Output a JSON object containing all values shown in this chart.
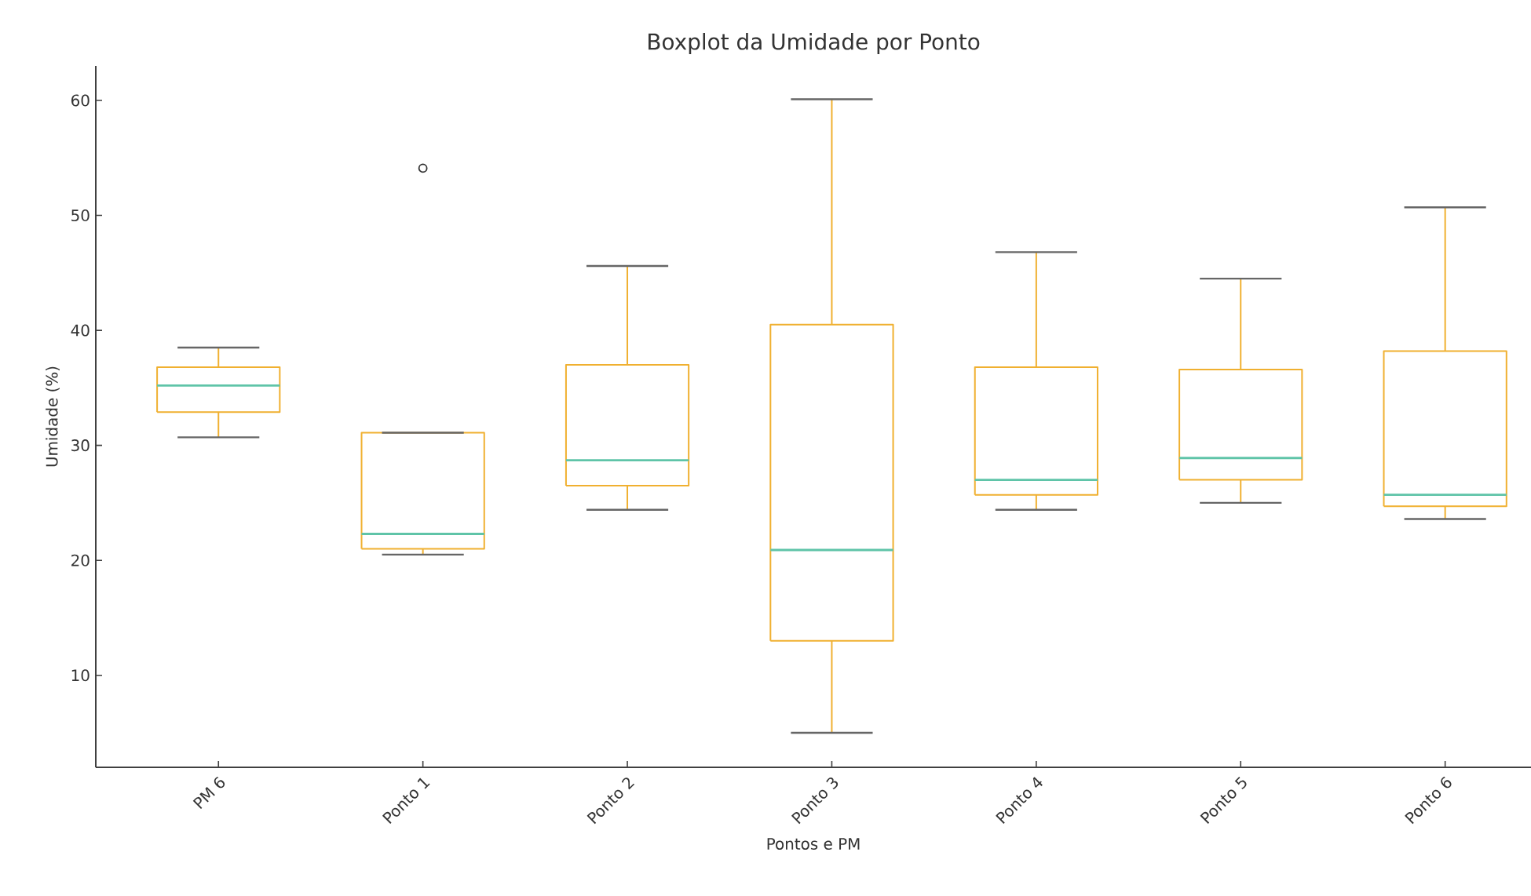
{
  "chart_data": {
    "type": "box",
    "title": "Boxplot da Umidade por Ponto",
    "xlabel": "Pontos e PM",
    "ylabel": "Umidade (%)",
    "categories": [
      "PM 6",
      "Ponto 1",
      "Ponto 2",
      "Ponto 3",
      "Ponto 4",
      "Ponto 5",
      "Ponto 6"
    ],
    "series": [
      {
        "color": "#f0b030",
        "boxes": [
          {
            "low": 30.7,
            "q1": 32.9,
            "median": 35.2,
            "q3": 36.8,
            "high": 38.5
          },
          {
            "low": 20.5,
            "q1": 21.0,
            "median": 22.3,
            "q3": 31.1,
            "high": 31.1,
            "outliers": [
              54.1
            ]
          },
          {
            "low": 24.4,
            "q1": 26.5,
            "median": 28.7,
            "q3": 37.0,
            "high": 45.6
          },
          {
            "low": 5.0,
            "q1": 13.0,
            "median": 20.9,
            "q3": 40.5,
            "high": 60.1
          },
          {
            "low": 24.4,
            "q1": 25.7,
            "median": 27.0,
            "q3": 36.8,
            "high": 46.8
          },
          {
            "low": 25.0,
            "q1": 27.0,
            "median": 28.9,
            "q3": 36.6,
            "high": 44.5
          },
          {
            "low": 23.6,
            "q1": 24.7,
            "median": 25.7,
            "q3": 38.2,
            "high": 50.7
          }
        ]
      }
    ],
    "ylim": [
      2,
      63
    ],
    "yticks": [
      10,
      20,
      30,
      40,
      50,
      60
    ]
  }
}
